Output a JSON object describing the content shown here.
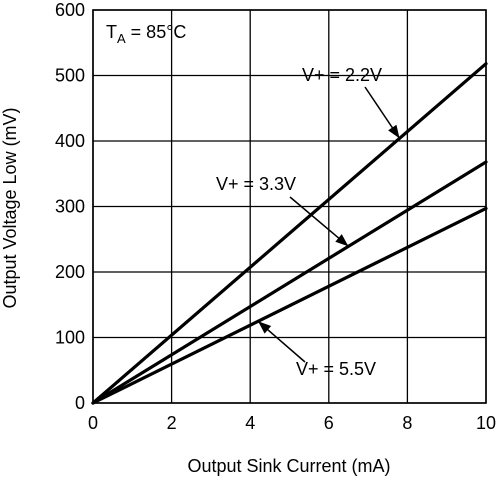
{
  "chart_data": {
    "type": "line",
    "title": "",
    "xlabel": "Output Sink Current (mA)",
    "ylabel": "Output Voltage Low (mV)",
    "xlim": [
      0,
      10
    ],
    "ylim": [
      0,
      600
    ],
    "xticks": [
      0,
      2,
      4,
      6,
      8,
      10
    ],
    "yticks": [
      0,
      100,
      200,
      300,
      400,
      500,
      600
    ],
    "grid": true,
    "legend": "none",
    "condition": {
      "main": "T",
      "sub": "A",
      "rest": " = 85°C"
    },
    "series": [
      {
        "name": "V+ = 2.2V",
        "x": [
          0,
          10
        ],
        "y": [
          0,
          518
        ]
      },
      {
        "name": "V+ = 3.3V",
        "x": [
          0,
          10
        ],
        "y": [
          0,
          368
        ]
      },
      {
        "name": "V+ = 5.5V",
        "x": [
          0,
          10
        ],
        "y": [
          0,
          297
        ]
      }
    ],
    "annotations": [
      {
        "text": "V+ = 2.2V",
        "series": 0,
        "arrow_to_x": 7.8
      },
      {
        "text": "V+ = 3.3V",
        "series": 1,
        "arrow_to_x": 6.5
      },
      {
        "text": "V+ = 5.5V",
        "series": 2,
        "arrow_to_x": 4.2
      }
    ],
    "colors": {
      "line": "#000000",
      "grid": "#000000"
    }
  }
}
